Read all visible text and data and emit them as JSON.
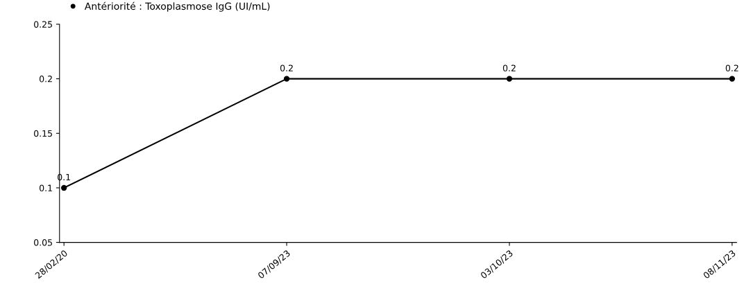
{
  "chart_data": {
    "type": "line",
    "categories": [
      "28/02/20",
      "07/09/23",
      "03/10/23",
      "08/11/23"
    ],
    "series": [
      {
        "name": "Antériorité : Toxoplasmose IgG (UI/mL)",
        "color": "#000000",
        "values": [
          0.1,
          0.2,
          0.2,
          0.2
        ]
      }
    ],
    "ylim": [
      0.05,
      0.25
    ],
    "yticks": [
      0.05,
      0.1,
      0.15,
      0.2,
      0.25
    ],
    "data_labels": true,
    "marker": "circle",
    "line_style": "solid",
    "grid": false,
    "legend": "top left"
  }
}
